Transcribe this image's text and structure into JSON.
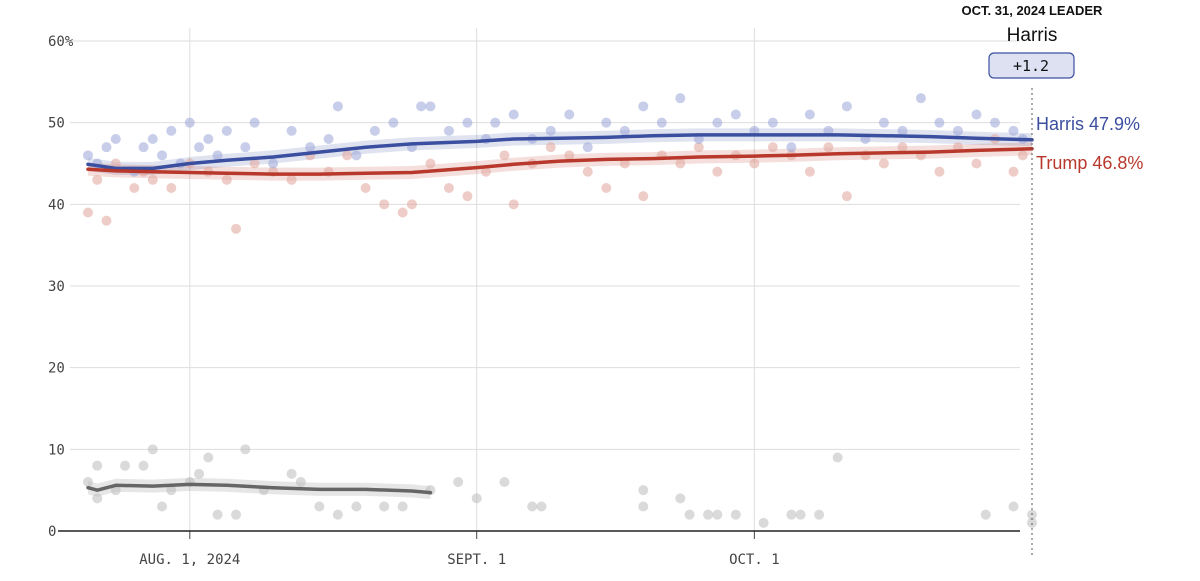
{
  "leader": {
    "heading": "OCT. 31, 2024 LEADER",
    "name": "Harris",
    "margin": "+1.2"
  },
  "colors": {
    "harris": "#3b4fa0",
    "trump": "#b8382b",
    "other": "#666666",
    "harris_dot": "#9aa6d8",
    "trump_dot": "#e0a49a",
    "other_dot": "#bbbbbb"
  },
  "chart_data": {
    "type": "line",
    "x_axis": {
      "start": "2024-07-21",
      "end": "2024-10-31",
      "ticks": [
        {
          "date": "2024-08-01",
          "label": "AUG. 1, 2024"
        },
        {
          "date": "2024-09-01",
          "label": "SEPT. 1"
        },
        {
          "date": "2024-10-01",
          "label": "OCT. 1"
        }
      ]
    },
    "y_axis": {
      "ylim": [
        0,
        60
      ],
      "ticks": [
        {
          "value": 0,
          "label": "0"
        },
        {
          "value": 10,
          "label": "10"
        },
        {
          "value": 20,
          "label": "20"
        },
        {
          "value": 30,
          "label": "30"
        },
        {
          "value": 40,
          "label": "40"
        },
        {
          "value": 50,
          "label": "50"
        },
        {
          "value": 60,
          "label": "60%"
        }
      ]
    },
    "grid": true,
    "series": [
      {
        "name": "Harris",
        "end_label": "Harris 47.9%",
        "color_key": "harris",
        "band": 0.8,
        "trend": [
          [
            "2024-07-21",
            44.9
          ],
          [
            "2024-07-24",
            44.4
          ],
          [
            "2024-07-28",
            44.4
          ],
          [
            "2024-08-01",
            45.0
          ],
          [
            "2024-08-05",
            45.4
          ],
          [
            "2024-08-10",
            45.8
          ],
          [
            "2024-08-15",
            46.4
          ],
          [
            "2024-08-20",
            47.0
          ],
          [
            "2024-08-25",
            47.4
          ],
          [
            "2024-09-01",
            47.7
          ],
          [
            "2024-09-05",
            48.0
          ],
          [
            "2024-09-10",
            48.1
          ],
          [
            "2024-09-15",
            48.2
          ],
          [
            "2024-09-20",
            48.4
          ],
          [
            "2024-09-25",
            48.5
          ],
          [
            "2024-10-01",
            48.5
          ],
          [
            "2024-10-05",
            48.5
          ],
          [
            "2024-10-10",
            48.5
          ],
          [
            "2024-10-15",
            48.4
          ],
          [
            "2024-10-20",
            48.3
          ],
          [
            "2024-10-25",
            48.1
          ],
          [
            "2024-10-31",
            47.9
          ]
        ]
      },
      {
        "name": "Trump",
        "end_label": "Trump 46.8%",
        "color_key": "trump",
        "band": 0.8,
        "trend": [
          [
            "2024-07-21",
            44.3
          ],
          [
            "2024-07-24",
            44.1
          ],
          [
            "2024-07-28",
            44.0
          ],
          [
            "2024-08-01",
            43.9
          ],
          [
            "2024-08-05",
            43.8
          ],
          [
            "2024-08-10",
            43.7
          ],
          [
            "2024-08-15",
            43.7
          ],
          [
            "2024-08-20",
            43.8
          ],
          [
            "2024-08-25",
            43.9
          ],
          [
            "2024-09-01",
            44.5
          ],
          [
            "2024-09-05",
            44.9
          ],
          [
            "2024-09-10",
            45.3
          ],
          [
            "2024-09-15",
            45.5
          ],
          [
            "2024-09-20",
            45.6
          ],
          [
            "2024-09-25",
            45.8
          ],
          [
            "2024-10-01",
            45.9
          ],
          [
            "2024-10-05",
            46.0
          ],
          [
            "2024-10-10",
            46.2
          ],
          [
            "2024-10-15",
            46.3
          ],
          [
            "2024-10-20",
            46.4
          ],
          [
            "2024-10-25",
            46.6
          ],
          [
            "2024-10-31",
            46.8
          ]
        ]
      },
      {
        "name": "",
        "color_key": "other",
        "band": 0.8,
        "trend": [
          [
            "2024-07-21",
            5.3
          ],
          [
            "2024-07-22",
            5.0
          ],
          [
            "2024-07-24",
            5.6
          ],
          [
            "2024-07-28",
            5.5
          ],
          [
            "2024-08-01",
            5.7
          ],
          [
            "2024-08-05",
            5.6
          ],
          [
            "2024-08-10",
            5.3
          ],
          [
            "2024-08-15",
            5.1
          ],
          [
            "2024-08-20",
            5.1
          ],
          [
            "2024-08-25",
            4.9
          ],
          [
            "2024-08-27",
            4.7
          ]
        ]
      }
    ],
    "polls": {
      "harris": [
        [
          "2024-07-21",
          46
        ],
        [
          "2024-07-22",
          45
        ],
        [
          "2024-07-23",
          47
        ],
        [
          "2024-07-24",
          48
        ],
        [
          "2024-07-26",
          44
        ],
        [
          "2024-07-27",
          47
        ],
        [
          "2024-07-28",
          48
        ],
        [
          "2024-07-29",
          46
        ],
        [
          "2024-07-30",
          49
        ],
        [
          "2024-07-31",
          45
        ],
        [
          "2024-08-01",
          50
        ],
        [
          "2024-08-02",
          47
        ],
        [
          "2024-08-03",
          48
        ],
        [
          "2024-08-04",
          46
        ],
        [
          "2024-08-05",
          49
        ],
        [
          "2024-08-07",
          47
        ],
        [
          "2024-08-08",
          50
        ],
        [
          "2024-08-10",
          45
        ],
        [
          "2024-08-12",
          49
        ],
        [
          "2024-08-14",
          47
        ],
        [
          "2024-08-16",
          48
        ],
        [
          "2024-08-17",
          52
        ],
        [
          "2024-08-19",
          46
        ],
        [
          "2024-08-21",
          49
        ],
        [
          "2024-08-23",
          50
        ],
        [
          "2024-08-25",
          47
        ],
        [
          "2024-08-26",
          52
        ],
        [
          "2024-08-27",
          52
        ],
        [
          "2024-08-29",
          49
        ],
        [
          "2024-08-31",
          50
        ],
        [
          "2024-09-02",
          48
        ],
        [
          "2024-09-03",
          50
        ],
        [
          "2024-09-05",
          51
        ],
        [
          "2024-09-07",
          48
        ],
        [
          "2024-09-09",
          49
        ],
        [
          "2024-09-11",
          51
        ],
        [
          "2024-09-13",
          47
        ],
        [
          "2024-09-15",
          50
        ],
        [
          "2024-09-17",
          49
        ],
        [
          "2024-09-19",
          52
        ],
        [
          "2024-09-21",
          50
        ],
        [
          "2024-09-23",
          53
        ],
        [
          "2024-09-25",
          48
        ],
        [
          "2024-09-27",
          50
        ],
        [
          "2024-09-29",
          51
        ],
        [
          "2024-10-01",
          49
        ],
        [
          "2024-10-03",
          50
        ],
        [
          "2024-10-05",
          47
        ],
        [
          "2024-10-07",
          51
        ],
        [
          "2024-10-09",
          49
        ],
        [
          "2024-10-11",
          52
        ],
        [
          "2024-10-13",
          48
        ],
        [
          "2024-10-15",
          50
        ],
        [
          "2024-10-17",
          49
        ],
        [
          "2024-10-19",
          53
        ],
        [
          "2024-10-21",
          50
        ],
        [
          "2024-10-23",
          49
        ],
        [
          "2024-10-25",
          51
        ],
        [
          "2024-10-27",
          50
        ],
        [
          "2024-10-29",
          49
        ],
        [
          "2024-10-30",
          48
        ]
      ],
      "trump": [
        [
          "2024-07-21",
          39
        ],
        [
          "2024-07-22",
          43
        ],
        [
          "2024-07-23",
          38
        ],
        [
          "2024-07-24",
          45
        ],
        [
          "2024-07-26",
          42
        ],
        [
          "2024-07-27",
          44
        ],
        [
          "2024-07-28",
          43
        ],
        [
          "2024-07-30",
          42
        ],
        [
          "2024-08-01",
          45
        ],
        [
          "2024-08-03",
          44
        ],
        [
          "2024-08-05",
          43
        ],
        [
          "2024-08-06",
          37
        ],
        [
          "2024-08-08",
          45
        ],
        [
          "2024-08-10",
          44
        ],
        [
          "2024-08-12",
          43
        ],
        [
          "2024-08-14",
          46
        ],
        [
          "2024-08-16",
          44
        ],
        [
          "2024-08-18",
          46
        ],
        [
          "2024-08-20",
          42
        ],
        [
          "2024-08-22",
          40
        ],
        [
          "2024-08-24",
          39
        ],
        [
          "2024-08-25",
          40
        ],
        [
          "2024-08-27",
          45
        ],
        [
          "2024-08-29",
          42
        ],
        [
          "2024-08-31",
          41
        ],
        [
          "2024-09-02",
          44
        ],
        [
          "2024-09-04",
          46
        ],
        [
          "2024-09-05",
          40
        ],
        [
          "2024-09-07",
          45
        ],
        [
          "2024-09-09",
          47
        ],
        [
          "2024-09-11",
          46
        ],
        [
          "2024-09-13",
          44
        ],
        [
          "2024-09-15",
          42
        ],
        [
          "2024-09-17",
          45
        ],
        [
          "2024-09-19",
          41
        ],
        [
          "2024-09-21",
          46
        ],
        [
          "2024-09-23",
          45
        ],
        [
          "2024-09-25",
          47
        ],
        [
          "2024-09-27",
          44
        ],
        [
          "2024-09-29",
          46
        ],
        [
          "2024-10-01",
          45
        ],
        [
          "2024-10-03",
          47
        ],
        [
          "2024-10-05",
          46
        ],
        [
          "2024-10-07",
          44
        ],
        [
          "2024-10-09",
          47
        ],
        [
          "2024-10-11",
          41
        ],
        [
          "2024-10-13",
          46
        ],
        [
          "2024-10-15",
          45
        ],
        [
          "2024-10-17",
          47
        ],
        [
          "2024-10-19",
          46
        ],
        [
          "2024-10-21",
          44
        ],
        [
          "2024-10-23",
          47
        ],
        [
          "2024-10-25",
          45
        ],
        [
          "2024-10-27",
          48
        ],
        [
          "2024-10-29",
          44
        ],
        [
          "2024-10-30",
          46
        ]
      ],
      "other": [
        [
          "2024-07-21",
          6
        ],
        [
          "2024-07-22",
          8
        ],
        [
          "2024-07-22",
          4
        ],
        [
          "2024-07-24",
          5
        ],
        [
          "2024-07-25",
          8
        ],
        [
          "2024-07-27",
          8
        ],
        [
          "2024-07-28",
          10
        ],
        [
          "2024-07-29",
          3
        ],
        [
          "2024-07-30",
          5
        ],
        [
          "2024-08-01",
          6
        ],
        [
          "2024-08-02",
          7
        ],
        [
          "2024-08-03",
          9
        ],
        [
          "2024-08-04",
          2
        ],
        [
          "2024-08-06",
          2
        ],
        [
          "2024-08-07",
          10
        ],
        [
          "2024-08-09",
          5
        ],
        [
          "2024-08-12",
          7
        ],
        [
          "2024-08-13",
          6
        ],
        [
          "2024-08-15",
          3
        ],
        [
          "2024-08-17",
          2
        ],
        [
          "2024-08-19",
          3
        ],
        [
          "2024-08-22",
          3
        ],
        [
          "2024-08-24",
          3
        ],
        [
          "2024-08-27",
          5
        ],
        [
          "2024-08-30",
          6
        ],
        [
          "2024-09-01",
          4
        ],
        [
          "2024-09-04",
          6
        ],
        [
          "2024-09-07",
          3
        ],
        [
          "2024-09-08",
          3
        ],
        [
          "2024-09-19",
          5
        ],
        [
          "2024-09-19",
          3
        ],
        [
          "2024-09-23",
          4
        ],
        [
          "2024-09-24",
          2
        ],
        [
          "2024-09-26",
          2
        ],
        [
          "2024-09-27",
          2
        ],
        [
          "2024-09-29",
          2
        ],
        [
          "2024-10-02",
          1
        ],
        [
          "2024-10-05",
          2
        ],
        [
          "2024-10-06",
          2
        ],
        [
          "2024-10-08",
          2
        ],
        [
          "2024-10-10",
          9
        ],
        [
          "2024-10-26",
          2
        ],
        [
          "2024-10-29",
          3
        ],
        [
          "2024-10-31",
          1
        ],
        [
          "2024-10-31",
          2
        ]
      ]
    }
  }
}
